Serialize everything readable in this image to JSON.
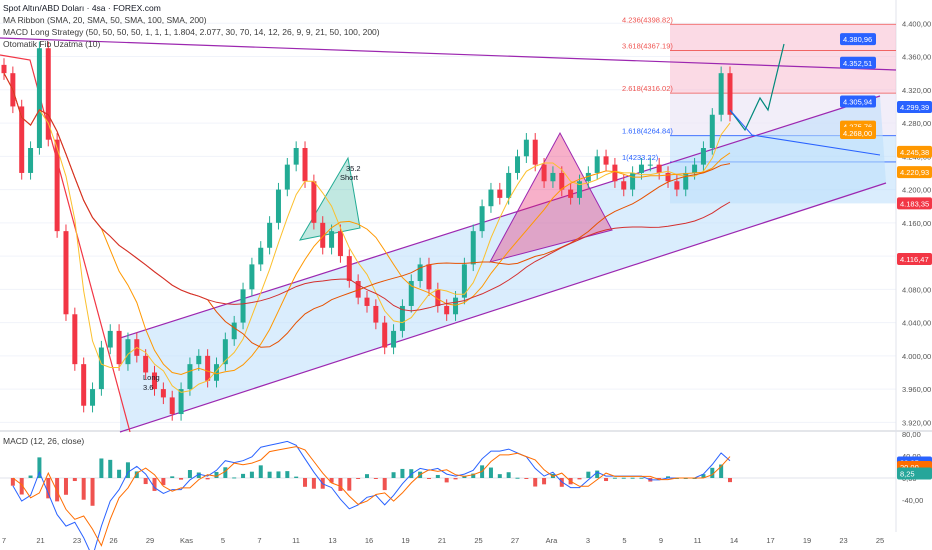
{
  "header": {
    "title": "Spot Altın/ABD Doları · 4sa · FOREX.com",
    "ma_ribbon": "MA Ribbon (SMA, 20, SMA, 50, SMA, 100, SMA, 200)",
    "macd_strategy": "MACD Long Strategy (50, 50, 50, 50, 1, 1, 1, 1.804, 2.077, 30, 70, 14, 12, 26, 9, 9, 21, 50, 100, 200)",
    "fib": "Otomatik Fib Uzatma (10)"
  },
  "macd_pane": {
    "label": "MACD (12, 26, close)"
  },
  "fib_levels": [
    {
      "label": "4.236(4398.82)",
      "price": 4398.82
    },
    {
      "label": "3.618(4367.19)",
      "price": 4367.19
    },
    {
      "label": "2.618(4316.02)",
      "price": 4316.02
    },
    {
      "label": "1.618(4264.84)",
      "price": 4264.84
    },
    {
      "label": "1(4233.22)",
      "price": 4233.22
    }
  ],
  "annotations": {
    "short": "Short",
    "short_value": "35.2",
    "long": "Long",
    "long_value": "3.6"
  },
  "colors": {
    "up": "#22ab94",
    "down": "#f23645",
    "channel": "#9c27b0",
    "channel_fill": "#bbdefb",
    "price_tag": "#2962ff"
  },
  "chart_data": {
    "type": "candlestick",
    "ylim": [
      3900,
      4420
    ],
    "price_axis_ticks": [
      "4.400,00",
      "4.360,00",
      "4.320,00",
      "4.280,00",
      "4.240,00",
      "4.200,00",
      "4.160,00",
      "4.120,00",
      "4.080,00",
      "4.040,00",
      "4.000,00",
      "3.960,00",
      "3.920,00"
    ],
    "x_tick_labels": [
      "7",
      "21",
      "23",
      "26",
      "29",
      "Kas",
      "5",
      "7",
      "11",
      "13",
      "16",
      "19",
      "21",
      "25",
      "27",
      "Ara",
      "3",
      "5",
      "9",
      "11",
      "14",
      "17",
      "19",
      "23",
      "25"
    ],
    "price_tags": [
      {
        "value": 4380.96,
        "label": "4.380,96"
      },
      {
        "value": 4352.51,
        "label": "4.352,51"
      },
      {
        "value": 4305.94,
        "label": "4.305,94"
      },
      {
        "value": 4299.39,
        "label": "4.299,39"
      },
      {
        "value": 4275.76,
        "label": "4.275,76"
      },
      {
        "value": 4268.0,
        "label": "4.268,00"
      },
      {
        "value": 4245.38,
        "label": "4.245,38"
      },
      {
        "value": 4220.93,
        "label": "4.220,93"
      },
      {
        "value": 4183.35,
        "label": "4.183,35"
      },
      {
        "value": 4116.47,
        "label": "4.116,47"
      }
    ],
    "closes": [
      4340,
      4300,
      4220,
      4250,
      4370,
      4260,
      4150,
      4050,
      3990,
      3940,
      3960,
      4010,
      4030,
      3990,
      4020,
      4000,
      3980,
      3960,
      3950,
      3930,
      3960,
      3990,
      4000,
      3970,
      3990,
      4020,
      4040,
      4080,
      4110,
      4130,
      4160,
      4200,
      4230,
      4250,
      4210,
      4160,
      4130,
      4150,
      4120,
      4090,
      4070,
      4060,
      4040,
      4010,
      4030,
      4060,
      4090,
      4110,
      4080,
      4060,
      4050,
      4070,
      4110,
      4150,
      4180,
      4200,
      4190,
      4220,
      4240,
      4260,
      4230,
      4210,
      4220,
      4200,
      4190,
      4210,
      4220,
      4240,
      4230,
      4210,
      4200,
      4220,
      4230,
      4230,
      4220,
      4210,
      4200,
      4220,
      4230,
      4250,
      4290,
      4340,
      4290
    ],
    "macd_axis_ticks": [
      "80,00",
      "40,00",
      "0,00",
      "-40,00"
    ],
    "macd_tags": [
      {
        "value": 28.25,
        "label": "28,25"
      },
      {
        "value": 20.0,
        "label": "20,00"
      },
      {
        "value": 8.25,
        "label": "8,25"
      }
    ],
    "macd_ylim": [
      -60,
      80
    ]
  }
}
